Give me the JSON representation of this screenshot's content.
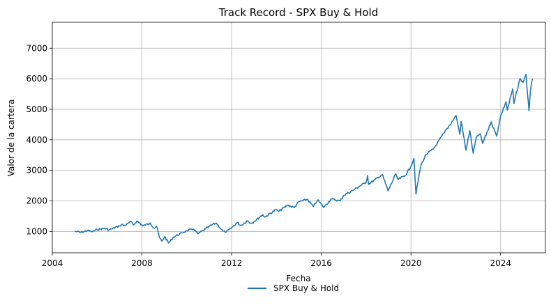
{
  "chart_data": {
    "type": "line",
    "title": "Track Record - SPX Buy & Hold",
    "xlabel": "Fecha",
    "ylabel": "Valor de la cartera",
    "xlim": [
      "2004-01-01",
      "2025-12-31"
    ],
    "ylim": [
      300,
      7850
    ],
    "xticks": [
      "2004",
      "2008",
      "2012",
      "2016",
      "2020",
      "2024"
    ],
    "yticks": [
      1000,
      2000,
      3000,
      4000,
      5000,
      6000,
      7000
    ],
    "grid": true,
    "legend": {
      "placement": "bottom-center",
      "entries": [
        "SPX Buy & Hold"
      ]
    },
    "series": [
      {
        "name": "SPX Buy & Hold",
        "color": "#1f77b4",
        "points": [
          [
            "2005-01-03",
            1000
          ],
          [
            "2005-04-15",
            970
          ],
          [
            "2005-08-01",
            1030
          ],
          [
            "2005-10-15",
            990
          ],
          [
            "2006-01-01",
            1060
          ],
          [
            "2006-05-01",
            1100
          ],
          [
            "2006-07-15",
            1050
          ],
          [
            "2006-12-31",
            1180
          ],
          [
            "2007-02-20",
            1230
          ],
          [
            "2007-03-10",
            1180
          ],
          [
            "2007-07-15",
            1320
          ],
          [
            "2007-08-15",
            1210
          ],
          [
            "2007-10-09",
            1340
          ],
          [
            "2008-01-20",
            1180
          ],
          [
            "2008-05-15",
            1280
          ],
          [
            "2008-07-15",
            1100
          ],
          [
            "2008-09-01",
            1150
          ],
          [
            "2008-10-10",
            800
          ],
          [
            "2008-11-20",
            680
          ],
          [
            "2009-01-06",
            830
          ],
          [
            "2009-03-09",
            620
          ],
          [
            "2009-06-01",
            820
          ],
          [
            "2009-10-15",
            950
          ],
          [
            "2010-01-01",
            1020
          ],
          [
            "2010-04-23",
            1080
          ],
          [
            "2010-07-01",
            920
          ],
          [
            "2010-11-01",
            1080
          ],
          [
            "2011-02-15",
            1220
          ],
          [
            "2011-04-29",
            1270
          ],
          [
            "2011-08-08",
            1010
          ],
          [
            "2011-10-04",
            980
          ],
          [
            "2012-01-01",
            1120
          ],
          [
            "2012-04-02",
            1290
          ],
          [
            "2012-06-01",
            1190
          ],
          [
            "2012-09-14",
            1350
          ],
          [
            "2012-11-15",
            1260
          ],
          [
            "2013-01-01",
            1320
          ],
          [
            "2013-05-21",
            1550
          ],
          [
            "2013-06-24",
            1470
          ],
          [
            "2013-12-31",
            1720
          ],
          [
            "2014-02-03",
            1650
          ],
          [
            "2014-06-30",
            1860
          ],
          [
            "2014-10-15",
            1780
          ],
          [
            "2014-12-31",
            1970
          ],
          [
            "2015-05-20",
            2050
          ],
          [
            "2015-08-25",
            1810
          ],
          [
            "2015-11-03",
            2030
          ],
          [
            "2016-02-11",
            1790
          ],
          [
            "2016-06-08",
            2060
          ],
          [
            "2016-11-04",
            2000
          ],
          [
            "2016-12-31",
            2180
          ],
          [
            "2017-06-30",
            2380
          ],
          [
            "2017-12-31",
            2610
          ],
          [
            "2018-01-26",
            2830
          ],
          [
            "2018-02-08",
            2540
          ],
          [
            "2018-09-20",
            2860
          ],
          [
            "2018-12-24",
            2330
          ],
          [
            "2019-04-30",
            2880
          ],
          [
            "2019-06-03",
            2700
          ],
          [
            "2019-10-01",
            2830
          ],
          [
            "2019-12-31",
            3130
          ],
          [
            "2020-02-19",
            3390
          ],
          [
            "2020-03-23",
            2220
          ],
          [
            "2020-06-08",
            3150
          ],
          [
            "2020-09-02",
            3520
          ],
          [
            "2020-12-31",
            3700
          ],
          [
            "2021-06-30",
            4240
          ],
          [
            "2021-12-31",
            4770
          ],
          [
            "2022-01-03",
            4800
          ],
          [
            "2022-03-08",
            4180
          ],
          [
            "2022-03-29",
            4600
          ],
          [
            "2022-06-16",
            3660
          ],
          [
            "2022-08-16",
            4300
          ],
          [
            "2022-10-12",
            3560
          ],
          [
            "2022-12-01",
            4080
          ],
          [
            "2023-02-02",
            4200
          ],
          [
            "2023-03-13",
            3880
          ],
          [
            "2023-07-31",
            4590
          ],
          [
            "2023-10-27",
            4120
          ],
          [
            "2023-12-31",
            4770
          ],
          [
            "2024-03-28",
            5250
          ],
          [
            "2024-04-19",
            4970
          ],
          [
            "2024-07-16",
            5670
          ],
          [
            "2024-08-05",
            5190
          ],
          [
            "2024-11-11",
            6000
          ],
          [
            "2024-12-31",
            5880
          ],
          [
            "2025-02-19",
            6150
          ],
          [
            "2025-03-13",
            5520
          ],
          [
            "2025-04-08",
            4950
          ],
          [
            "2025-05-01",
            5600
          ],
          [
            "2025-06-01",
            6000
          ]
        ]
      }
    ]
  }
}
